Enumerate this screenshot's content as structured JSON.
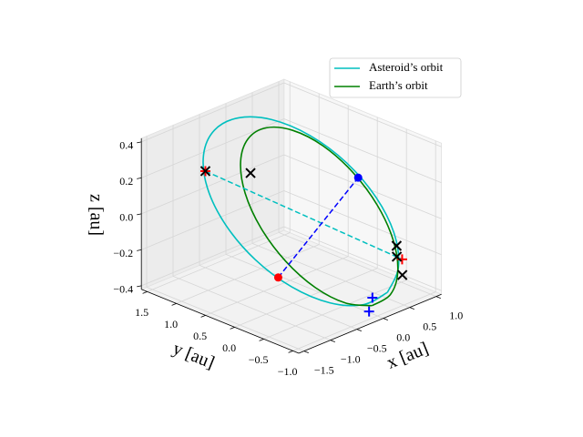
{
  "chart_data": {
    "type": "line3d",
    "xlabel": "x [au]",
    "ylabel": "y [au]",
    "zlabel": "z [au]",
    "xlim": [
      -1.6,
      1.1
    ],
    "ylim": [
      -1.1,
      1.6
    ],
    "zlim": [
      -0.42,
      0.42
    ],
    "xticks": [
      {
        "value": -1.5,
        "label": "−1.5"
      },
      {
        "value": -1.0,
        "label": "−1.0"
      },
      {
        "value": -0.5,
        "label": "−0.5"
      },
      {
        "value": 0.0,
        "label": "0.0"
      },
      0.5,
      {
        "value": 1.0,
        "label": "1.0"
      }
    ],
    "yticks": [
      {
        "value": 1.5,
        "label": "1.5"
      },
      {
        "value": 1.0,
        "label": "1.0"
      },
      0.5,
      {
        "value": 0.0,
        "label": "0.0"
      },
      {
        "value": -0.5,
        "label": "−0.5"
      },
      {
        "value": -1.0,
        "label": "−1.0"
      }
    ],
    "zticks": [
      {
        "value": -0.4,
        "label": "−0.4"
      },
      {
        "value": -0.2,
        "label": "−0.2"
      },
      {
        "value": 0.0,
        "label": "0.0"
      },
      0.2,
      0.4
    ],
    "grid": true,
    "legend": "upper right",
    "series": [
      {
        "name": "Asteroid’s orbit",
        "color": "#00bfbf",
        "x": [
          0.345,
          -0.118,
          -0.568,
          -0.94,
          -1.175,
          -1.238,
          -1.12,
          -0.838,
          -0.435,
          0.028,
          0.478,
          0.85,
          1.085,
          1.148,
          1.03,
          0.748,
          0.345
        ],
        "y": [
          -0.858,
          -0.864,
          -0.697,
          -0.383,
          0.032,
          0.483,
          0.901,
          1.224,
          1.402,
          1.408,
          1.241,
          0.927,
          0.512,
          0.061,
          -0.357,
          -0.68,
          -0.858
        ],
        "z": [
          -0.35,
          -0.361,
          -0.318,
          -0.226,
          -0.1,
          0.042,
          0.176,
          0.285,
          0.35,
          0.361,
          0.318,
          0.226,
          0.1,
          -0.042,
          -0.176,
          -0.285,
          -0.35
        ]
      },
      {
        "name": "Earth’s orbit",
        "color": "#008000",
        "x": [
          1,
          0.924,
          0.707,
          0.383,
          0,
          -0.383,
          -0.707,
          -0.924,
          -1,
          -0.924,
          -0.707,
          -0.383,
          0,
          0.383,
          0.707,
          0.924,
          1
        ],
        "y": [
          0,
          0.383,
          0.707,
          0.924,
          1,
          0.924,
          0.707,
          0.383,
          0,
          -0.383,
          -0.707,
          -0.924,
          -1,
          -0.924,
          -0.707,
          -0.383,
          0
        ],
        "z": [
          -0.616,
          -0.643,
          -0.573,
          -0.415,
          -0.194,
          0.057,
          0.299,
          0.495,
          0.616,
          0.643,
          0.573,
          0.415,
          0.194,
          -0.057,
          -0.299,
          -0.495,
          -0.616
        ]
      }
    ],
    "segments": [
      {
        "color": "#00bfbf",
        "style": "dashed",
        "x": [
          -1.26,
          1.04
        ],
        "y": [
          0.81,
          -0.48
        ],
        "z": [
          0.3,
          -0.3
        ]
      },
      {
        "color": "#0000ff",
        "style": "dashed",
        "x": [
          -1.04,
          -0.31
        ],
        "y": [
          -0.24,
          -0.95
        ],
        "z": [
          -0.18,
          0.38
        ]
      }
    ],
    "points": [
      {
        "marker": "o",
        "color": "#ff0000",
        "x": -1.04,
        "y": -0.24,
        "z": -0.18
      },
      {
        "marker": "o",
        "color": "#0000ff",
        "x": -0.31,
        "y": -0.95,
        "z": 0.38
      },
      {
        "marker": "+",
        "color": "#ff0000",
        "x": -1.26,
        "y": 0.81,
        "z": 0.3
      },
      {
        "marker": "+",
        "color": "#ff0000",
        "x": 1.04,
        "y": -0.48,
        "z": -0.3
      },
      {
        "marker": "+",
        "color": "#0000ff",
        "x": 0.29,
        "y": -0.65,
        "z": -0.4
      },
      {
        "marker": "+",
        "color": "#0000ff",
        "x": -0.06,
        "y": -0.91,
        "z": -0.4
      },
      {
        "marker": "x",
        "color": "#000000",
        "x": -1.26,
        "y": 0.81,
        "z": 0.3
      },
      {
        "marker": "x",
        "color": "#000000",
        "x": -0.88,
        "y": 0.38,
        "z": 0.3
      },
      {
        "marker": "x",
        "color": "#000000",
        "x": 1.3,
        "y": -0.15,
        "z": -0.3
      },
      {
        "marker": "x",
        "color": "#000000",
        "x": 1.05,
        "y": -0.38,
        "z": -0.3
      },
      {
        "marker": "x",
        "color": "#000000",
        "x": 0.68,
        "y": -0.81,
        "z": -0.3
      }
    ]
  }
}
